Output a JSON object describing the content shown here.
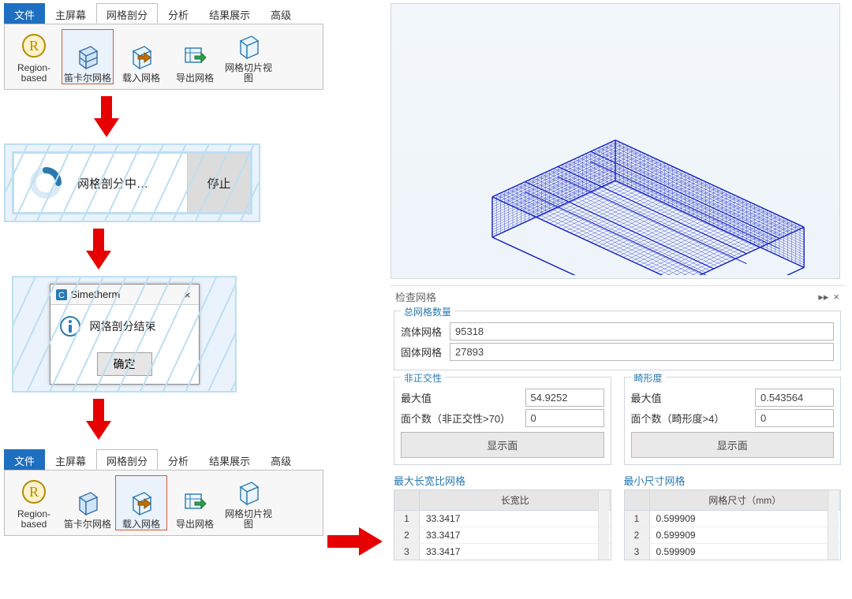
{
  "ribbon_top": {
    "tabs": {
      "file": "文件",
      "main": "主屏幕",
      "mesh": "网格剖分",
      "analysis": "分析",
      "result": "结果展示",
      "advanced": "高级"
    },
    "active_tab": "mesh",
    "buttons": {
      "region": "Region-based",
      "cartesian": "笛卡尔网格",
      "import": "载入网格",
      "export": "导出网格",
      "slice": "网格切片视图"
    },
    "selected_button": "cartesian"
  },
  "meshing_strip": {
    "label": "网格剖分中…",
    "stop": "停止",
    "spinner_color_track": "#dbeaf6",
    "spinner_color_arc": "#2a7ab0"
  },
  "completion_dialog": {
    "app": "Simetherm",
    "message": "网格剖分结束",
    "ok": "确定"
  },
  "ribbon_bottom": {
    "tabs": {
      "file": "文件",
      "main": "主屏幕",
      "mesh": "网格剖分",
      "analysis": "分析",
      "result": "结果展示",
      "advanced": "高级"
    },
    "active_tab": "mesh",
    "buttons": {
      "region": "Region-based",
      "cartesian": "笛卡尔网格",
      "import": "载入网格",
      "export": "导出网格",
      "slice": "网格切片视图"
    },
    "selected_button": "import"
  },
  "arrow_color": "#e60000",
  "viewport": {
    "wire_color": "#1020c0",
    "bg_top": "#f3f7fb",
    "bg_bottom": "#eef4fa"
  },
  "check_panel": {
    "title": "检查网格",
    "total_group": {
      "legend": "总网格数量",
      "fluid_label": "流体网格",
      "fluid_value": "95318",
      "solid_label": "固体网格",
      "solid_value": "27893"
    },
    "nonorth_group": {
      "legend": "非正交性",
      "max_label": "最大值",
      "max_value": "54.9252",
      "count_label": "面个数（非正交性>70）",
      "count_value": "0",
      "show": "显示面"
    },
    "skew_group": {
      "legend": "畸形度",
      "max_label": "最大值",
      "max_value": "0.543564",
      "count_label": "面个数（畸形度>4）",
      "count_value": "0",
      "show": "显示面"
    },
    "aspect_section_label": "最大长宽比网格",
    "aspect_table": {
      "header": "长宽比",
      "rows": [
        [
          1,
          "33.3417"
        ],
        [
          2,
          "33.3417"
        ],
        [
          3,
          "33.3417"
        ]
      ]
    },
    "minsize_section_label": "最小尺寸网格",
    "minsize_table": {
      "header": "网格尺寸（mm）",
      "rows": [
        [
          1,
          "0.599909"
        ],
        [
          2,
          "0.599909"
        ],
        [
          3,
          "0.599909"
        ]
      ]
    }
  }
}
